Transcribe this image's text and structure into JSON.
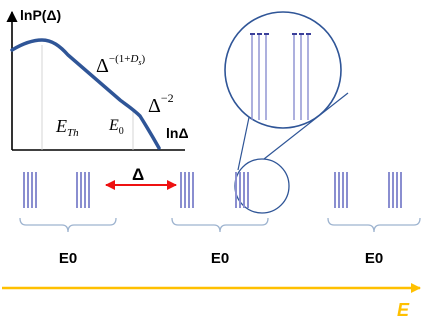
{
  "plot": {
    "y_axis_label": "lnP(Δ)",
    "x_axis_label": "lnΔ",
    "power_law_1": {
      "base": "Δ",
      "exponent": "−(1+",
      "exponent_var": "D",
      "exponent_sub": "s",
      "exponent_close": ")"
    },
    "power_law_2": {
      "base": "Δ",
      "exponent": "−2"
    },
    "energy_th": {
      "main": "E",
      "sub": "Th"
    },
    "energy_0": {
      "main": "E",
      "sub": "0"
    }
  },
  "spacing_label": "Δ",
  "groups": [
    {
      "label": "E0"
    },
    {
      "label": "E0"
    },
    {
      "label": "E0"
    }
  ],
  "energy_axis": {
    "label": "E"
  },
  "colors": {
    "curve": "#2f5597",
    "axis": "#000000",
    "levels": "#8a8ed0",
    "levels_dark": "#3a3f9a",
    "magnifier": "#2f5597",
    "spacing_arrow": "#ee1111",
    "brace": "#9db3cf",
    "energy_arrow": "#ffc000",
    "energy_label": "#ffc000"
  }
}
